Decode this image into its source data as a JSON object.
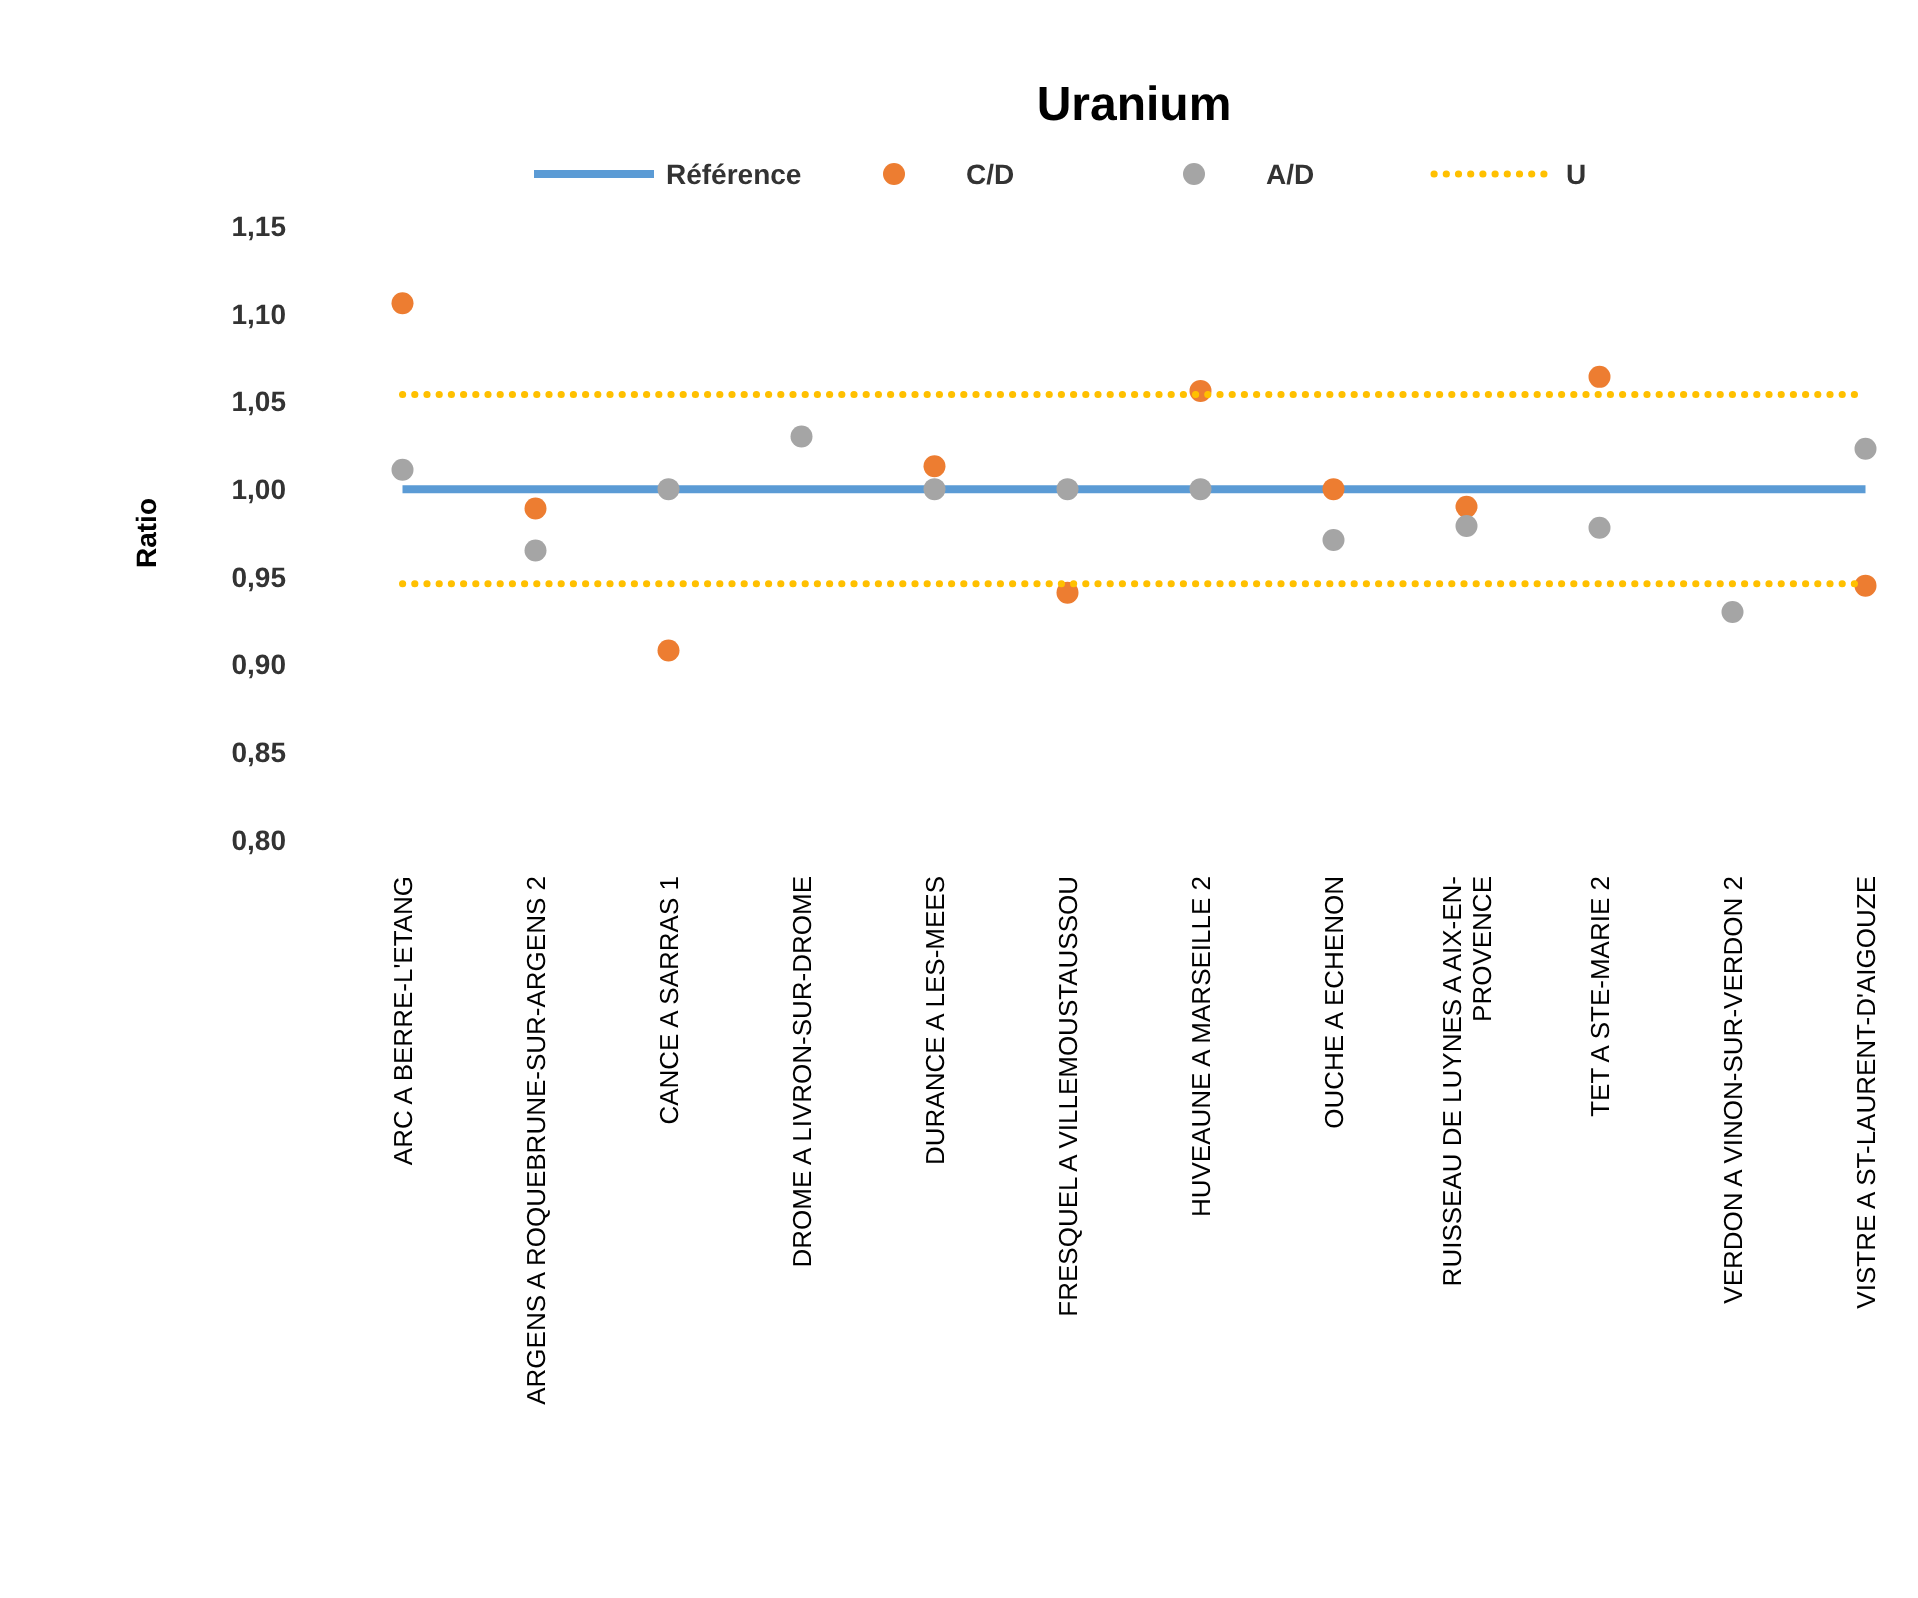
{
  "chart_data": {
    "type": "scatter",
    "title": "Uranium",
    "ylabel": "Ratio",
    "categories": [
      "ARC A BERRE-L'ETANG",
      "ARGENS A ROQUEBRUNE-SUR-ARGENS 2",
      "CANCE A SARRAS 1",
      "DROME A LIVRON-SUR-DROME",
      "DURANCE A LES-MEES",
      "FRESQUEL A VILLEMOUSTAUSSOU",
      "HUVEAUNE A MARSEILLE 2",
      "OUCHE A ECHENON",
      "RUISSEAU DE LUYNES A AIX-EN-PROVENCE",
      "TET A STE-MARIE 2",
      "VERDON A VINON-SUR-VERDON 2",
      "VISTRE A ST-LAURENT-D'AIGOUZE"
    ],
    "series": [
      {
        "name": "Référence",
        "type": "line",
        "color": "#5b9bd5",
        "line_style": "solid",
        "marker": "none",
        "values": [
          1,
          1,
          1,
          1,
          1,
          1,
          1,
          1,
          1,
          1,
          1,
          1
        ]
      },
      {
        "name": "C/D",
        "marker": "circle",
        "color": "#ed7d31",
        "values": [
          1.106,
          0.989,
          0.908,
          null,
          1.013,
          0.941,
          1.056,
          1.0,
          0.99,
          1.064,
          null,
          0.945
        ]
      },
      {
        "name": "A/D",
        "marker": "circle",
        "color": "#a5a5a5",
        "values": [
          1.011,
          0.965,
          1.0,
          1.03,
          1.0,
          1.0,
          1.0,
          0.971,
          0.979,
          0.978,
          0.93,
          1.023
        ]
      },
      {
        "name": "U",
        "type": "line",
        "color": "#ffc000",
        "line_style": "dotted",
        "marker": "none",
        "values": [
          1.054,
          1.054,
          1.054,
          1.054,
          1.054,
          1.054,
          1.054,
          1.054,
          1.054,
          1.054,
          1.054,
          1.054
        ]
      },
      {
        "type": "line",
        "color": "#ffc000",
        "line_style": "dotted",
        "marker": "none",
        "values": [
          0.946,
          0.946,
          0.946,
          0.946,
          0.946,
          0.946,
          0.946,
          0.946,
          0.946,
          0.946,
          0.946,
          0.946
        ]
      }
    ],
    "ylim": [
      0.8,
      1.15
    ],
    "yticks": [
      {
        "value": 0.8,
        "label": "0,80"
      },
      {
        "value": 0.85,
        "label": "0,85"
      },
      {
        "value": 0.9,
        "label": "0,90"
      },
      {
        "value": 0.95,
        "label": "0,95"
      },
      {
        "value": 1.0,
        "label": "1,00"
      },
      {
        "value": 1.05,
        "label": "1,05"
      },
      {
        "value": 1.1,
        "label": "1,10"
      },
      {
        "value": 1.15,
        "label": "1,15"
      }
    ],
    "grid": false,
    "legend": "top"
  }
}
